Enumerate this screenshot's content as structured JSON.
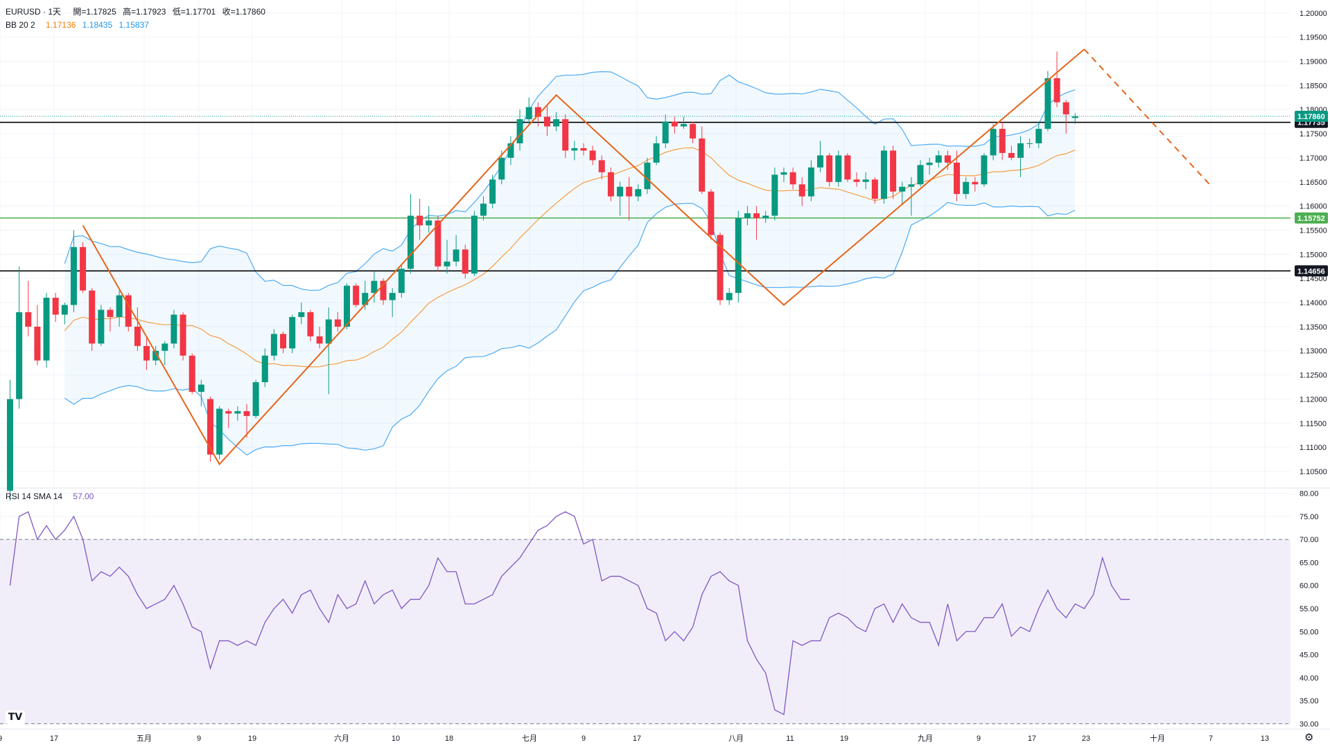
{
  "legend": {
    "symbol": "EURUSD · 1天",
    "open": "開=1.17825",
    "high": "高=1.17923",
    "low": "低=1.17701",
    "close": "收=1.17860",
    "bb_name": "BB 20 2",
    "bb_basis": "1.17136",
    "bb_upper": "1.18435",
    "bb_lower": "1.15837",
    "rsi_name": "RSI 14 SMA 14",
    "rsi_value": "57.00"
  },
  "colors": {
    "up": "#089981",
    "down": "#f23645",
    "bb_basis": "#f57c00",
    "bb_band": "#2196f3",
    "bb_fill": "#2196f3",
    "rsi_line": "#7e57c2",
    "rsi_fill": "#ede7f6",
    "pattern": "#e8631a",
    "level_black": "#000000",
    "level_green": "#4caf50"
  },
  "chart_data": [
    {
      "type": "candlestick",
      "symbol": "EURUSD",
      "interval": "1天",
      "y_axis_ticks": [
        "1.10500",
        "1.11000",
        "1.11500",
        "1.12000",
        "1.12500",
        "1.13000",
        "1.13500",
        "1.14000",
        "1.14500",
        "1.15000",
        "1.15500",
        "1.16000",
        "1.16500",
        "1.17000",
        "1.17500",
        "1.18000",
        "1.18500",
        "1.19000",
        "1.19500",
        "1.20000"
      ],
      "ylim": [
        1.1017,
        1.2027
      ],
      "x_axis_labels": [
        "9",
        "17",
        "五月",
        "9",
        "19",
        "六月",
        "10",
        "18",
        "七月",
        "9",
        "17",
        "八月",
        "11",
        "19",
        "九月",
        "9",
        "17",
        "23",
        "十月",
        "7",
        "13"
      ],
      "horizontal_levels": [
        {
          "value": 1.17735,
          "label": "1.17735",
          "style": "solid-black"
        },
        {
          "value": 1.15752,
          "label": "1.15752",
          "style": "solid-green"
        },
        {
          "value": 1.14656,
          "label": "1.14656",
          "style": "solid-black"
        }
      ],
      "current_price": {
        "value": 1.1786,
        "label": "1.17860"
      },
      "candles": [
        {
          "o": 1.101,
          "h": 1.124,
          "l": 1.099,
          "c": 1.12
        },
        {
          "o": 1.12,
          "h": 1.1475,
          "l": 1.118,
          "c": 1.138
        },
        {
          "o": 1.138,
          "h": 1.1445,
          "l": 1.133,
          "c": 1.135
        },
        {
          "o": 1.135,
          "h": 1.1395,
          "l": 1.127,
          "c": 1.128
        },
        {
          "o": 1.128,
          "h": 1.142,
          "l": 1.1265,
          "c": 1.141
        },
        {
          "o": 1.141,
          "h": 1.142,
          "l": 1.136,
          "c": 1.1375
        },
        {
          "o": 1.1375,
          "h": 1.14,
          "l": 1.1355,
          "c": 1.1395
        },
        {
          "o": 1.1395,
          "h": 1.155,
          "l": 1.138,
          "c": 1.1515
        },
        {
          "o": 1.1515,
          "h": 1.1525,
          "l": 1.142,
          "c": 1.1425
        },
        {
          "o": 1.1425,
          "h": 1.143,
          "l": 1.13,
          "c": 1.1315
        },
        {
          "o": 1.1315,
          "h": 1.1395,
          "l": 1.131,
          "c": 1.1385
        },
        {
          "o": 1.1385,
          "h": 1.139,
          "l": 1.134,
          "c": 1.137
        },
        {
          "o": 1.137,
          "h": 1.1425,
          "l": 1.135,
          "c": 1.1415
        },
        {
          "o": 1.1415,
          "h": 1.142,
          "l": 1.134,
          "c": 1.135
        },
        {
          "o": 1.135,
          "h": 1.139,
          "l": 1.13,
          "c": 1.131
        },
        {
          "o": 1.131,
          "h": 1.133,
          "l": 1.126,
          "c": 1.128
        },
        {
          "o": 1.128,
          "h": 1.131,
          "l": 1.127,
          "c": 1.13
        },
        {
          "o": 1.13,
          "h": 1.132,
          "l": 1.127,
          "c": 1.1315
        },
        {
          "o": 1.1315,
          "h": 1.1385,
          "l": 1.1305,
          "c": 1.1375
        },
        {
          "o": 1.1375,
          "h": 1.138,
          "l": 1.128,
          "c": 1.129
        },
        {
          "o": 1.129,
          "h": 1.1295,
          "l": 1.121,
          "c": 1.1215
        },
        {
          "o": 1.1215,
          "h": 1.124,
          "l": 1.1185,
          "c": 1.123
        },
        {
          "o": 1.12,
          "h": 1.1205,
          "l": 1.107,
          "c": 1.1085
        },
        {
          "o": 1.1085,
          "h": 1.1185,
          "l": 1.1075,
          "c": 1.118
        },
        {
          "o": 1.1175,
          "h": 1.118,
          "l": 1.114,
          "c": 1.117
        },
        {
          "o": 1.117,
          "h": 1.1185,
          "l": 1.1155,
          "c": 1.1175
        },
        {
          "o": 1.1175,
          "h": 1.119,
          "l": 1.112,
          "c": 1.1165
        },
        {
          "o": 1.1165,
          "h": 1.124,
          "l": 1.116,
          "c": 1.1235
        },
        {
          "o": 1.1235,
          "h": 1.1305,
          "l": 1.1225,
          "c": 1.129
        },
        {
          "o": 1.129,
          "h": 1.1345,
          "l": 1.128,
          "c": 1.1335
        },
        {
          "o": 1.1335,
          "h": 1.134,
          "l": 1.1295,
          "c": 1.1305
        },
        {
          "o": 1.1305,
          "h": 1.1375,
          "l": 1.1295,
          "c": 1.137
        },
        {
          "o": 1.137,
          "h": 1.14,
          "l": 1.1355,
          "c": 1.138
        },
        {
          "o": 1.138,
          "h": 1.1385,
          "l": 1.132,
          "c": 1.133
        },
        {
          "o": 1.133,
          "h": 1.135,
          "l": 1.1305,
          "c": 1.1315
        },
        {
          "o": 1.1315,
          "h": 1.139,
          "l": 1.121,
          "c": 1.1365
        },
        {
          "o": 1.1365,
          "h": 1.138,
          "l": 1.134,
          "c": 1.135
        },
        {
          "o": 1.135,
          "h": 1.144,
          "l": 1.1345,
          "c": 1.1435
        },
        {
          "o": 1.1435,
          "h": 1.144,
          "l": 1.139,
          "c": 1.1395
        },
        {
          "o": 1.1395,
          "h": 1.1445,
          "l": 1.1385,
          "c": 1.142
        },
        {
          "o": 1.142,
          "h": 1.1465,
          "l": 1.14,
          "c": 1.1445
        },
        {
          "o": 1.1445,
          "h": 1.145,
          "l": 1.1395,
          "c": 1.1405
        },
        {
          "o": 1.1405,
          "h": 1.143,
          "l": 1.137,
          "c": 1.142
        },
        {
          "o": 1.142,
          "h": 1.148,
          "l": 1.141,
          "c": 1.147
        },
        {
          "o": 1.147,
          "h": 1.1625,
          "l": 1.146,
          "c": 1.158
        },
        {
          "o": 1.158,
          "h": 1.1615,
          "l": 1.153,
          "c": 1.156
        },
        {
          "o": 1.156,
          "h": 1.16,
          "l": 1.1545,
          "c": 1.157
        },
        {
          "o": 1.157,
          "h": 1.158,
          "l": 1.1465,
          "c": 1.1475
        },
        {
          "o": 1.1475,
          "h": 1.153,
          "l": 1.146,
          "c": 1.1485
        },
        {
          "o": 1.1485,
          "h": 1.154,
          "l": 1.1475,
          "c": 1.151
        },
        {
          "o": 1.151,
          "h": 1.152,
          "l": 1.145,
          "c": 1.146
        },
        {
          "o": 1.146,
          "h": 1.159,
          "l": 1.1455,
          "c": 1.158
        },
        {
          "o": 1.158,
          "h": 1.162,
          "l": 1.157,
          "c": 1.1605
        },
        {
          "o": 1.1605,
          "h": 1.1665,
          "l": 1.1595,
          "c": 1.1655
        },
        {
          "o": 1.1655,
          "h": 1.1715,
          "l": 1.1645,
          "c": 1.17
        },
        {
          "o": 1.17,
          "h": 1.1745,
          "l": 1.1685,
          "c": 1.173
        },
        {
          "o": 1.173,
          "h": 1.18,
          "l": 1.1715,
          "c": 1.178
        },
        {
          "o": 1.178,
          "h": 1.1825,
          "l": 1.177,
          "c": 1.1805
        },
        {
          "o": 1.1805,
          "h": 1.1815,
          "l": 1.1765,
          "c": 1.1785
        },
        {
          "o": 1.1785,
          "h": 1.181,
          "l": 1.1745,
          "c": 1.1765
        },
        {
          "o": 1.1765,
          "h": 1.1795,
          "l": 1.1755,
          "c": 1.178
        },
        {
          "o": 1.178,
          "h": 1.179,
          "l": 1.17,
          "c": 1.1715
        },
        {
          "o": 1.1715,
          "h": 1.1735,
          "l": 1.1695,
          "c": 1.172
        },
        {
          "o": 1.172,
          "h": 1.173,
          "l": 1.1705,
          "c": 1.1715
        },
        {
          "o": 1.1715,
          "h": 1.1725,
          "l": 1.1685,
          "c": 1.1695
        },
        {
          "o": 1.1695,
          "h": 1.1705,
          "l": 1.1655,
          "c": 1.167
        },
        {
          "o": 1.167,
          "h": 1.168,
          "l": 1.161,
          "c": 1.162
        },
        {
          "o": 1.162,
          "h": 1.165,
          "l": 1.158,
          "c": 1.164
        },
        {
          "o": 1.164,
          "h": 1.166,
          "l": 1.157,
          "c": 1.162
        },
        {
          "o": 1.162,
          "h": 1.1645,
          "l": 1.161,
          "c": 1.1635
        },
        {
          "o": 1.1635,
          "h": 1.17,
          "l": 1.1625,
          "c": 1.169
        },
        {
          "o": 1.169,
          "h": 1.1745,
          "l": 1.1685,
          "c": 1.173
        },
        {
          "o": 1.173,
          "h": 1.179,
          "l": 1.172,
          "c": 1.1775
        },
        {
          "o": 1.1775,
          "h": 1.1785,
          "l": 1.175,
          "c": 1.1765
        },
        {
          "o": 1.1765,
          "h": 1.1785,
          "l": 1.176,
          "c": 1.177
        },
        {
          "o": 1.177,
          "h": 1.1775,
          "l": 1.173,
          "c": 1.174
        },
        {
          "o": 1.174,
          "h": 1.1765,
          "l": 1.1625,
          "c": 1.163
        },
        {
          "o": 1.163,
          "h": 1.1635,
          "l": 1.153,
          "c": 1.154
        },
        {
          "o": 1.154,
          "h": 1.1545,
          "l": 1.1395,
          "c": 1.1405
        },
        {
          "o": 1.1405,
          "h": 1.143,
          "l": 1.1395,
          "c": 1.142
        },
        {
          "o": 1.142,
          "h": 1.159,
          "l": 1.14,
          "c": 1.1575
        },
        {
          "o": 1.1575,
          "h": 1.16,
          "l": 1.156,
          "c": 1.1585
        },
        {
          "o": 1.1585,
          "h": 1.16,
          "l": 1.153,
          "c": 1.1575
        },
        {
          "o": 1.1575,
          "h": 1.159,
          "l": 1.1565,
          "c": 1.158
        },
        {
          "o": 1.158,
          "h": 1.168,
          "l": 1.157,
          "c": 1.1665
        },
        {
          "o": 1.1665,
          "h": 1.168,
          "l": 1.165,
          "c": 1.167
        },
        {
          "o": 1.167,
          "h": 1.168,
          "l": 1.1635,
          "c": 1.1645
        },
        {
          "o": 1.1645,
          "h": 1.166,
          "l": 1.16,
          "c": 1.162
        },
        {
          "o": 1.162,
          "h": 1.1695,
          "l": 1.161,
          "c": 1.168
        },
        {
          "o": 1.168,
          "h": 1.1735,
          "l": 1.167,
          "c": 1.1705
        },
        {
          "o": 1.1705,
          "h": 1.171,
          "l": 1.164,
          "c": 1.165
        },
        {
          "o": 1.165,
          "h": 1.1715,
          "l": 1.164,
          "c": 1.1705
        },
        {
          "o": 1.1705,
          "h": 1.171,
          "l": 1.165,
          "c": 1.1655
        },
        {
          "o": 1.1655,
          "h": 1.167,
          "l": 1.164,
          "c": 1.165
        },
        {
          "o": 1.165,
          "h": 1.167,
          "l": 1.1635,
          "c": 1.1655
        },
        {
          "o": 1.1655,
          "h": 1.166,
          "l": 1.1605,
          "c": 1.1615
        },
        {
          "o": 1.1615,
          "h": 1.1725,
          "l": 1.1605,
          "c": 1.1715
        },
        {
          "o": 1.1715,
          "h": 1.1725,
          "l": 1.1615,
          "c": 1.163
        },
        {
          "o": 1.163,
          "h": 1.165,
          "l": 1.1605,
          "c": 1.164
        },
        {
          "o": 1.164,
          "h": 1.166,
          "l": 1.158,
          "c": 1.1645
        },
        {
          "o": 1.1645,
          "h": 1.1695,
          "l": 1.164,
          "c": 1.1685
        },
        {
          "o": 1.1685,
          "h": 1.17,
          "l": 1.1665,
          "c": 1.169
        },
        {
          "o": 1.169,
          "h": 1.1715,
          "l": 1.168,
          "c": 1.1705
        },
        {
          "o": 1.1705,
          "h": 1.1715,
          "l": 1.1675,
          "c": 1.169
        },
        {
          "o": 1.169,
          "h": 1.1715,
          "l": 1.161,
          "c": 1.1625
        },
        {
          "o": 1.1625,
          "h": 1.166,
          "l": 1.1615,
          "c": 1.165
        },
        {
          "o": 1.165,
          "h": 1.166,
          "l": 1.163,
          "c": 1.1645
        },
        {
          "o": 1.1645,
          "h": 1.171,
          "l": 1.164,
          "c": 1.1705
        },
        {
          "o": 1.1705,
          "h": 1.177,
          "l": 1.1695,
          "c": 1.176
        },
        {
          "o": 1.176,
          "h": 1.1775,
          "l": 1.1695,
          "c": 1.171
        },
        {
          "o": 1.171,
          "h": 1.1725,
          "l": 1.1695,
          "c": 1.17
        },
        {
          "o": 1.17,
          "h": 1.1745,
          "l": 1.166,
          "c": 1.173
        },
        {
          "o": 1.173,
          "h": 1.174,
          "l": 1.172,
          "c": 1.173
        },
        {
          "o": 1.173,
          "h": 1.1775,
          "l": 1.172,
          "c": 1.176
        },
        {
          "o": 1.176,
          "h": 1.188,
          "l": 1.1755,
          "c": 1.1865
        },
        {
          "o": 1.1865,
          "h": 1.192,
          "l": 1.1805,
          "c": 1.1815
        },
        {
          "o": 1.1815,
          "h": 1.182,
          "l": 1.175,
          "c": 1.179
        },
        {
          "o": 1.17825,
          "h": 1.17923,
          "l": 1.17701,
          "c": 1.1786
        }
      ],
      "pattern_path": [
        {
          "i": 8,
          "v": 1.156
        },
        {
          "i": 23,
          "v": 1.1065
        },
        {
          "i": 60,
          "v": 1.183
        },
        {
          "i": 85,
          "v": 1.1395
        },
        {
          "i": 118,
          "v": 1.1925
        }
      ],
      "projection": [
        {
          "i": 118,
          "v": 1.1925
        },
        {
          "i": 132,
          "v": 1.164
        }
      ]
    },
    {
      "type": "line",
      "indicator": "RSI 14 SMA 14",
      "y_axis_ticks": [
        "30.00",
        "35.00",
        "40.00",
        "45.00",
        "50.00",
        "55.00",
        "60.00",
        "65.00",
        "70.00",
        "75.00",
        "80.00"
      ],
      "ylim": [
        29,
        81
      ],
      "bands": [
        30,
        70
      ],
      "values": [
        60,
        75,
        76,
        70,
        73,
        70,
        72,
        75,
        70,
        61,
        63,
        62,
        64,
        62,
        58,
        55,
        56,
        57,
        60,
        56,
        51,
        50,
        42,
        48,
        48,
        47,
        48,
        47,
        52,
        55,
        57,
        54,
        58,
        59,
        55,
        52,
        58,
        55,
        56,
        61,
        56,
        58,
        59,
        55,
        57,
        57,
        60,
        66,
        63,
        63,
        56,
        56,
        57,
        58,
        62,
        64,
        66,
        69,
        72,
        73,
        75,
        76,
        75,
        69,
        70,
        61,
        62,
        62,
        61,
        60,
        55,
        54,
        48,
        50,
        48,
        51,
        58,
        62,
        63,
        61,
        60,
        48,
        44,
        41,
        33,
        32,
        48,
        47,
        48,
        48,
        53,
        54,
        53,
        51,
        50,
        55,
        56,
        52,
        56,
        53,
        52,
        52,
        47,
        56,
        48,
        50,
        50,
        53,
        53,
        56,
        49,
        51,
        50,
        55,
        59,
        55,
        53,
        56,
        55,
        58,
        66,
        60,
        57,
        57
      ]
    }
  ]
}
